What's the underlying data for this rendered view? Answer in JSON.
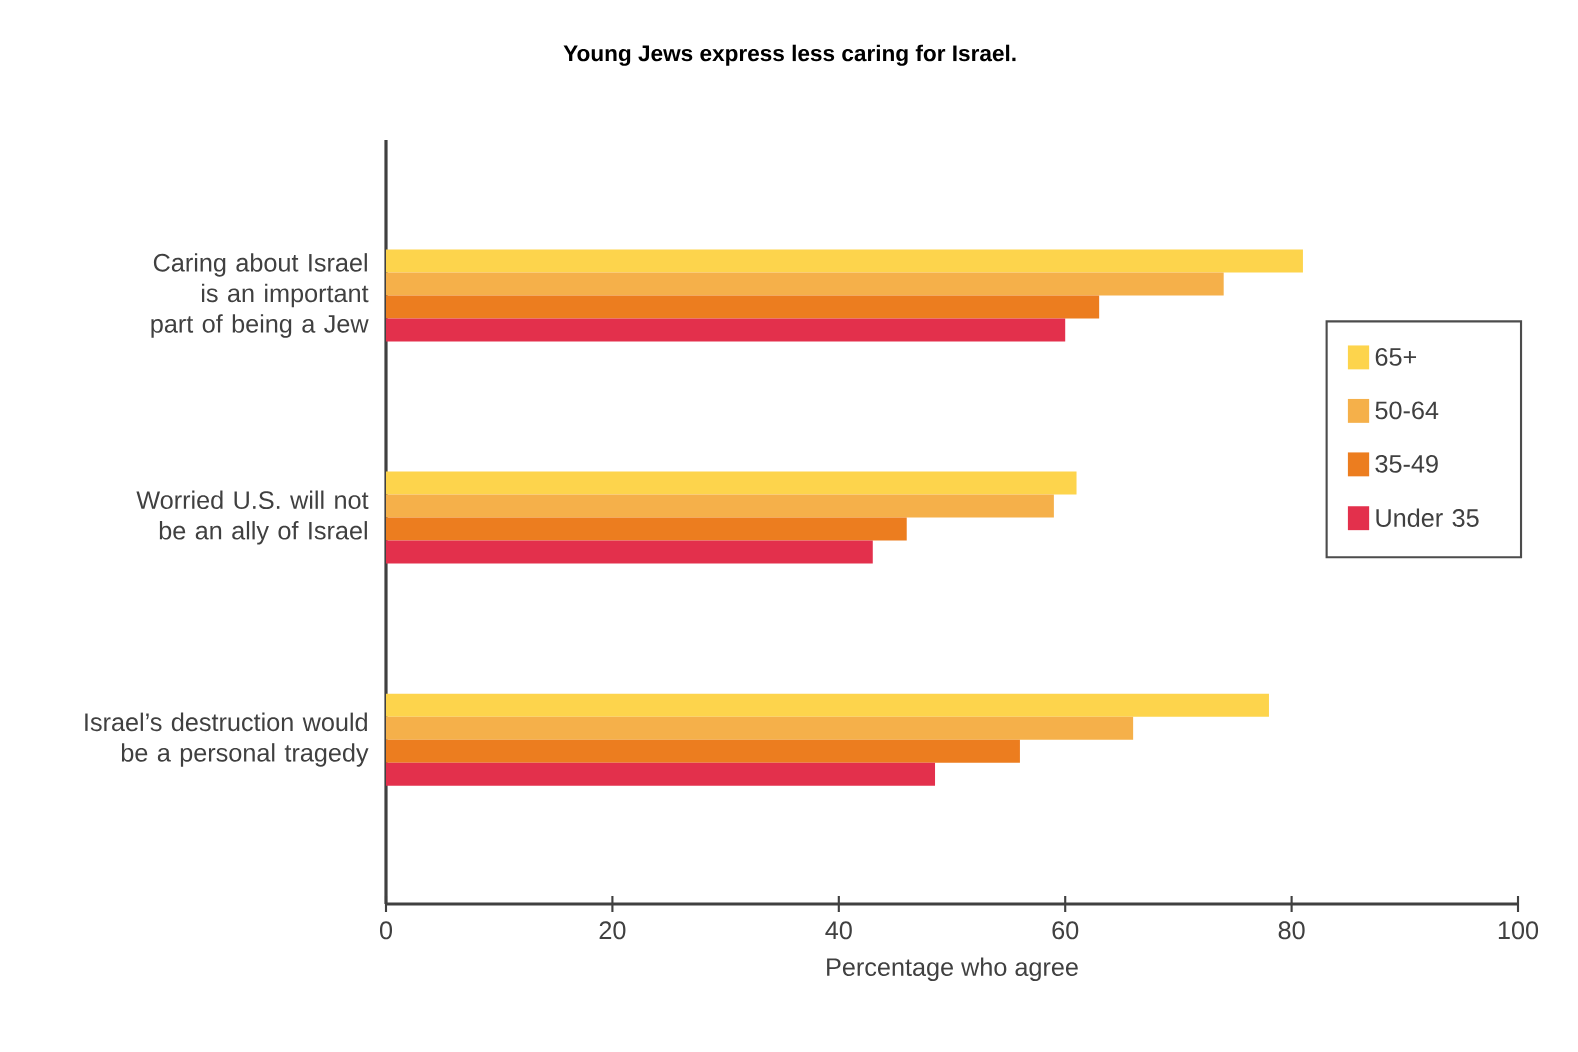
{
  "chart_data": {
    "type": "bar",
    "orientation": "horizontal",
    "title": "Young Jews express less caring for Israel.",
    "xlabel": "Percentage who agree",
    "categories": [
      "Caring about Israel is an important part of being a Jew",
      "Worried U.S. will not be an ally of Israel",
      "Israel’s destruction would be a personal tragedy"
    ],
    "series": [
      {
        "name": "65+",
        "color": "#fdd44c",
        "values": [
          81,
          61,
          78
        ]
      },
      {
        "name": "50-64",
        "color": "#f5b04a",
        "values": [
          74,
          59,
          66
        ]
      },
      {
        "name": "35-49",
        "color": "#ec7d1f",
        "values": [
          63,
          46,
          56
        ]
      },
      {
        "name": "Under 35",
        "color": "#e3304c",
        "values": [
          60,
          43,
          48.5
        ]
      }
    ],
    "xlim": [
      0,
      100
    ],
    "xticks": [
      0,
      20,
      40,
      60,
      80,
      100
    ],
    "grid": false,
    "legend": "right"
  }
}
